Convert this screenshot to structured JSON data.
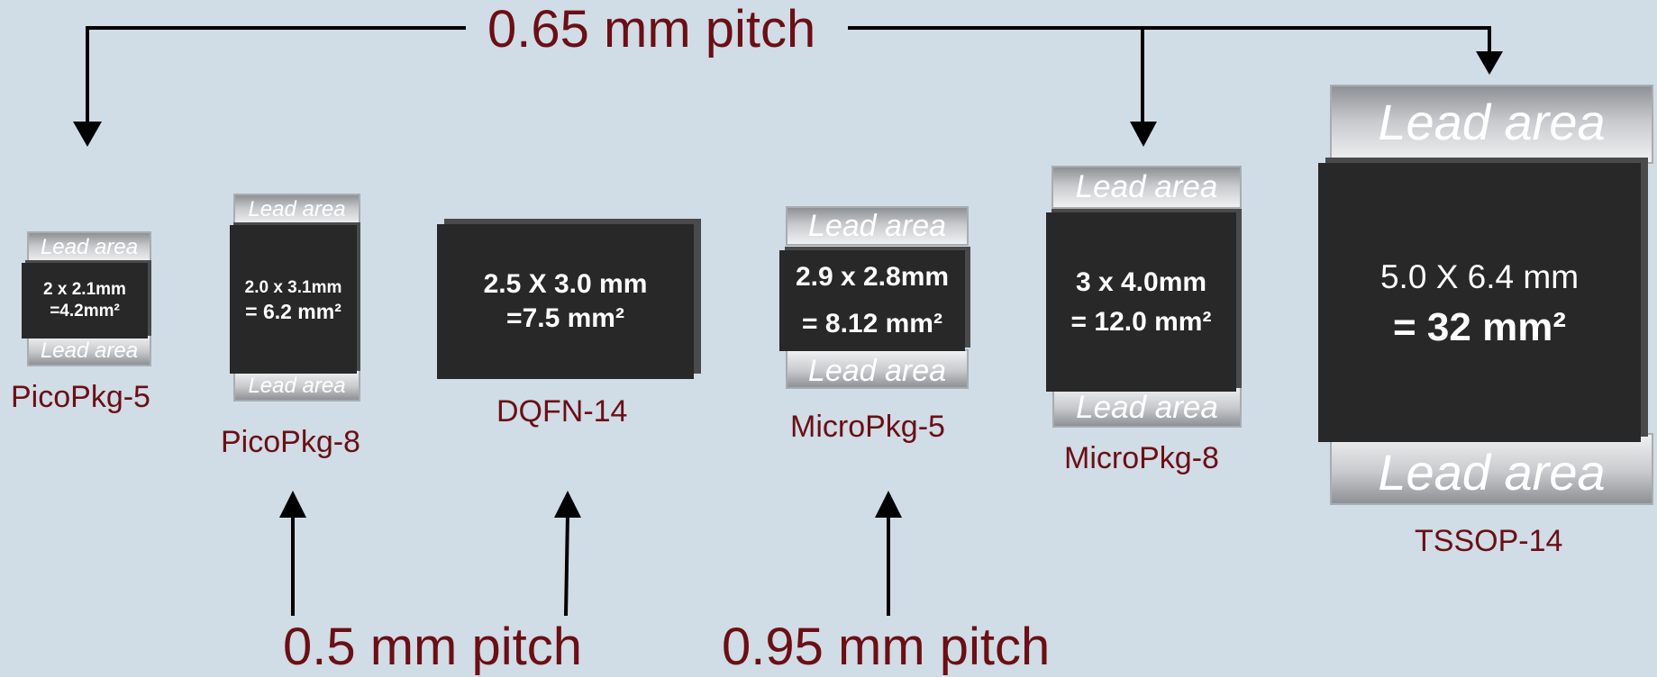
{
  "pitches": {
    "p065": "0.65 mm pitch",
    "p05": "0.5 mm pitch",
    "p095": "0.95 mm pitch"
  },
  "lead_label": "Lead area",
  "packages": {
    "picopkg5": {
      "name": "PicoPkg-5",
      "line1": "2 x 2.1mm",
      "line2": "=4.2mm²"
    },
    "picopkg8": {
      "name": "PicoPkg-8",
      "line1": "2.0 x 3.1mm",
      "line2": "= 6.2 mm²"
    },
    "dqfn14": {
      "name": "DQFN-14",
      "line1": "2.5 X 3.0 mm",
      "line2": "=7.5 mm²"
    },
    "micropkg5": {
      "name": "MicroPkg-5",
      "line1": "2.9 x 2.8mm",
      "line2": "= 8.12 mm²"
    },
    "micropkg8": {
      "name": "MicroPkg-8",
      "line1": "3 x 4.0mm",
      "line2": "= 12.0 mm²"
    },
    "tssop14": {
      "name": "TSSOP-14",
      "line1": "5.0 X 6.4 mm",
      "line2": "= 32 mm²"
    }
  },
  "colors": {
    "background": "#d0dce6",
    "label": "#6b0f14",
    "chip": "#282828",
    "arrow": "#000000"
  }
}
